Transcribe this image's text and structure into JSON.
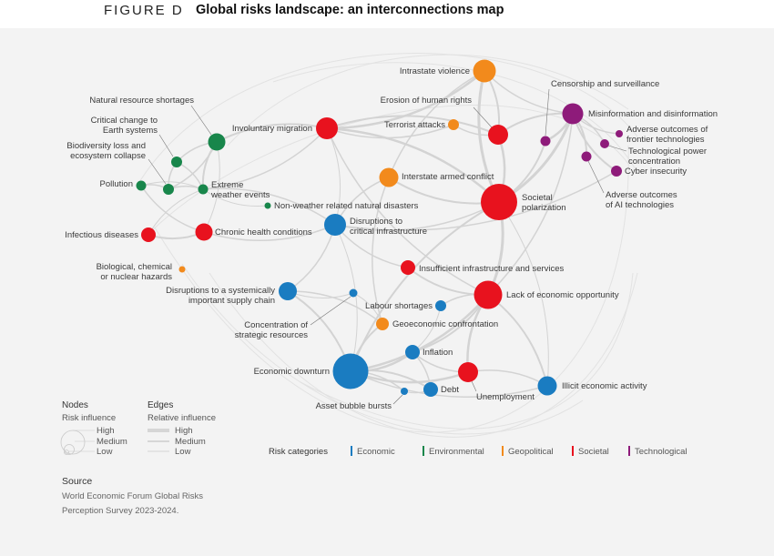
{
  "header": {
    "figure_label": "FIGURE D",
    "title": "Global risks landscape: an interconnections map"
  },
  "colors": {
    "Economic": "#1a7cc1",
    "Environmental": "#18864b",
    "Geopolitical": "#f28a1c",
    "Societal": "#e8121e",
    "Technological": "#8e1b7a"
  },
  "nodes": [
    {
      "id": "intrastate",
      "label": "Intrastate violence",
      "cat": "Geopolitical",
      "size": "medium"
    },
    {
      "id": "censorship",
      "label": "Censorship and surveillance",
      "cat": "Technological",
      "size": "low"
    },
    {
      "id": "misinfo",
      "label": "Misinformation and disinformation",
      "cat": "Technological",
      "size": "high"
    },
    {
      "id": "frontier",
      "label": "Adverse outcomes of frontier technologies",
      "cat": "Technological",
      "size": "low"
    },
    {
      "id": "techpower",
      "label": "Technological power concentration",
      "cat": "Technological",
      "size": "low"
    },
    {
      "id": "cyber",
      "label": "Cyber insecurity",
      "cat": "Technological",
      "size": "low"
    },
    {
      "id": "ai",
      "label": "Adverse outcomes of AI technologies",
      "cat": "Technological",
      "size": "low"
    },
    {
      "id": "humanrights",
      "label": "Erosion of human rights",
      "cat": "Societal",
      "size": "medium"
    },
    {
      "id": "terrorist",
      "label": "Terrorist attacks",
      "cat": "Geopolitical",
      "size": "low"
    },
    {
      "id": "migration",
      "label": "Involuntary migration",
      "cat": "Societal",
      "size": "medium"
    },
    {
      "id": "natres",
      "label": "Natural resource shortages",
      "cat": "Environmental",
      "size": "medium"
    },
    {
      "id": "earthsys",
      "label": "Critical change to Earth systems",
      "cat": "Environmental",
      "size": "low"
    },
    {
      "id": "biodiv",
      "label": "Biodiversity loss and ecosystem collapse",
      "cat": "Environmental",
      "size": "low"
    },
    {
      "id": "pollution",
      "label": "Pollution",
      "cat": "Environmental",
      "size": "low"
    },
    {
      "id": "extreme",
      "label": "Extreme weather events",
      "cat": "Environmental",
      "size": "low"
    },
    {
      "id": "nonweather",
      "label": "Non-weather related natural disasters",
      "cat": "Environmental",
      "size": "low"
    },
    {
      "id": "interstate",
      "label": "Interstate armed conflict",
      "cat": "Geopolitical",
      "size": "medium"
    },
    {
      "id": "polarization",
      "label": "Societal polarization",
      "cat": "Societal",
      "size": "high"
    },
    {
      "id": "infectious",
      "label": "Infectious diseases",
      "cat": "Societal",
      "size": "low"
    },
    {
      "id": "chronic",
      "label": "Chronic health conditions",
      "cat": "Societal",
      "size": "medium"
    },
    {
      "id": "critinfra",
      "label": "Disruptions to critical infrastructure",
      "cat": "Economic",
      "size": "medium"
    },
    {
      "id": "biochem",
      "label": "Biological, chemical or nuclear hazards",
      "cat": "Geopolitical",
      "size": "low"
    },
    {
      "id": "insuffinfra",
      "label": "Insufficient infrastructure and services",
      "cat": "Societal",
      "size": "low"
    },
    {
      "id": "supplychain",
      "label": "Disruptions to a systemically important supply chain",
      "cat": "Economic",
      "size": "medium"
    },
    {
      "id": "econopp",
      "label": "Lack of economic opportunity",
      "cat": "Societal",
      "size": "high"
    },
    {
      "id": "labour",
      "label": "Labour shortages",
      "cat": "Economic",
      "size": "low"
    },
    {
      "id": "concentration",
      "label": "Concentration of strategic resources",
      "cat": "Economic",
      "size": "low"
    },
    {
      "id": "geoecon",
      "label": "Geoeconomic confrontation",
      "cat": "Geopolitical",
      "size": "low"
    },
    {
      "id": "inflation",
      "label": "Inflation",
      "cat": "Economic",
      "size": "medium"
    },
    {
      "id": "downturn",
      "label": "Economic downturn",
      "cat": "Economic",
      "size": "high"
    },
    {
      "id": "unemployment",
      "label": "Unemployment",
      "cat": "Societal",
      "size": "medium"
    },
    {
      "id": "illicit",
      "label": "Illicit economic activity",
      "cat": "Economic",
      "size": "medium"
    },
    {
      "id": "debt",
      "label": "Debt",
      "cat": "Economic",
      "size": "medium"
    },
    {
      "id": "bubble",
      "label": "Asset bubble bursts",
      "cat": "Economic",
      "size": "low"
    }
  ],
  "legend": {
    "nodes_title": "Nodes",
    "nodes_subtitle": "Risk influence",
    "edges_title": "Edges",
    "edges_subtitle": "Relative influence",
    "levels": [
      "High",
      "Medium",
      "Low"
    ],
    "categories_title": "Risk categories",
    "categories": [
      "Economic",
      "Environmental",
      "Geopolitical",
      "Societal",
      "Technological"
    ]
  },
  "source": {
    "title": "Source",
    "text": "World Economic Forum Global Risks Perception Survey 2023-2024."
  }
}
